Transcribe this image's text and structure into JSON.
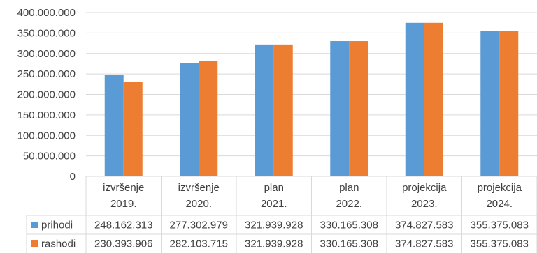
{
  "chart_data": {
    "type": "bar",
    "categories": [
      [
        "izvršenje",
        "2019."
      ],
      [
        "izvršenje",
        "2020."
      ],
      [
        "plan",
        "2021."
      ],
      [
        "plan",
        "2022."
      ],
      [
        "projekcija",
        "2023."
      ],
      [
        "projekcija",
        "2024."
      ]
    ],
    "series": [
      {
        "name": "prihodi",
        "color": "#5b9bd5",
        "values": [
          248162313,
          277302979,
          321939928,
          330165308,
          374827583,
          355375083
        ],
        "labels": [
          "248.162.313",
          "277.302.979",
          "321.939.928",
          "330.165.308",
          "374.827.583",
          "355.375.083"
        ]
      },
      {
        "name": "rashodi",
        "color": "#ed7d31",
        "values": [
          230393906,
          282103715,
          321939928,
          330165308,
          374827583,
          355375083
        ],
        "labels": [
          "230.393.906",
          "282.103.715",
          "321.939.928",
          "330.165.308",
          "374.827.583",
          "355.375.083"
        ]
      }
    ],
    "ylim": [
      0,
      400000000
    ],
    "yticks": [
      0,
      50000000,
      100000000,
      150000000,
      200000000,
      250000000,
      300000000,
      350000000,
      400000000
    ],
    "ytick_labels": [
      "0",
      "50.000.000",
      "100.000.000",
      "150.000.000",
      "200.000.000",
      "250.000.000",
      "300.000.000",
      "350.000.000",
      "400.000.000"
    ],
    "grid": true,
    "data_table": true
  }
}
